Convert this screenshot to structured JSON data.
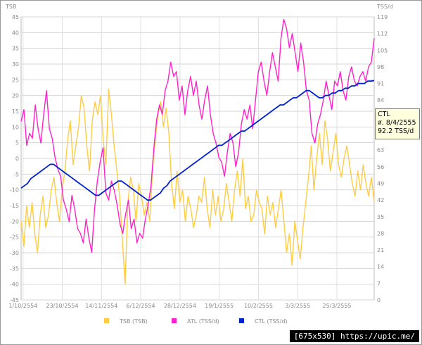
{
  "chart_data": {
    "type": "line",
    "ylabel_left": "TSB",
    "ylabel_right": "TSS/d",
    "ylim_left": [
      -45,
      45
    ],
    "ylim_right": [
      0,
      119
    ],
    "y_ticks_left": [
      "45",
      "40",
      "35",
      "30",
      "25",
      "20",
      "15",
      "10",
      "5",
      "0",
      "-5",
      "-10",
      "-15",
      "-20",
      "-25",
      "-30",
      "-35",
      "-40",
      "-45"
    ],
    "y_ticks_right": [
      "119",
      "112",
      "105",
      "98",
      "91",
      "84",
      "77",
      "70",
      "63",
      "56",
      "49",
      "42",
      "35",
      "28",
      "21",
      "14",
      "7",
      "0"
    ],
    "x_ticks": [
      "1/10/2554",
      "23/10/2554",
      "14/11/2554",
      "6/12/2554",
      "28/12/2554",
      "19/1/2555",
      "10/2/2555",
      "3/3/2555",
      "25/3/2555"
    ],
    "x_range": [
      "1/10/2554",
      "8/4/2555"
    ],
    "grid": true,
    "legend_position": "bottom",
    "series": [
      {
        "name": "TSB (TSB)",
        "color": "#ffcc44",
        "axis": "left",
        "values": [
          -20,
          -28,
          -15,
          -22,
          -14,
          -24,
          -30,
          -18,
          -12,
          -22,
          -18,
          -10,
          -6,
          -14,
          -20,
          -10,
          -4,
          6,
          12,
          -2,
          4,
          10,
          20,
          16,
          4,
          -4,
          12,
          18,
          14,
          20,
          6,
          -2,
          22,
          14,
          4,
          -4,
          -12,
          -26,
          -40,
          -14,
          -6,
          -10,
          -20,
          -8,
          -12,
          -18,
          -14,
          -20,
          -4,
          6,
          14,
          18,
          10,
          16,
          8,
          -8,
          -16,
          -4,
          -14,
          -10,
          -20,
          -12,
          -16,
          -22,
          -18,
          -12,
          -14,
          -6,
          -16,
          -22,
          -10,
          -18,
          -12,
          -20,
          -16,
          -8,
          -14,
          -20,
          -10,
          -4,
          -12,
          0,
          -16,
          -12,
          -20,
          -18,
          -10,
          -14,
          -16,
          -24,
          -12,
          -18,
          -14,
          -22,
          -16,
          -10,
          -20,
          -30,
          -24,
          -34,
          -20,
          -26,
          -32,
          -22,
          -14,
          -6,
          4,
          -10,
          0,
          8,
          -2,
          12,
          6,
          -4,
          2,
          8,
          -2,
          -6,
          0,
          4,
          -2,
          -8,
          -12,
          -4,
          -10,
          -2,
          -8,
          -12,
          -6,
          -14
        ]
      },
      {
        "name": "ATL (TSS/d)",
        "color": "#ff22cc",
        "axis": "right",
        "values": [
          75,
          80,
          65,
          70,
          68,
          82,
          72,
          66,
          78,
          88,
          72,
          68,
          60,
          55,
          52,
          42,
          38,
          33,
          44,
          38,
          30,
          28,
          24,
          34,
          26,
          20,
          38,
          50,
          58,
          64,
          45,
          42,
          50,
          46,
          40,
          32,
          28,
          36,
          42,
          30,
          34,
          24,
          28,
          26,
          34,
          40,
          48,
          64,
          76,
          82,
          78,
          88,
          92,
          100,
          94,
          96,
          84,
          90,
          78,
          88,
          94,
          86,
          92,
          82,
          76,
          84,
          90,
          78,
          70,
          66,
          60,
          58,
          52,
          62,
          70,
          66,
          56,
          62,
          74,
          80,
          76,
          82,
          72,
          84,
          96,
          100,
          92,
          86,
          96,
          104,
          98,
          92,
          110,
          118,
          114,
          106,
          112,
          104,
          96,
          108,
          100,
          88,
          84,
          70,
          66,
          74,
          78,
          84,
          92,
          86,
          80,
          92,
          90,
          96,
          88,
          84,
          94,
          98,
          92,
          90,
          94,
          96,
          92,
          98,
          100,
          110
        ]
      },
      {
        "name": "CTL (TSS/d)",
        "color": "#0022cc",
        "axis": "right",
        "values": [
          47,
          48,
          49,
          51,
          52,
          53,
          54,
          55,
          56,
          57,
          57,
          56,
          55,
          54,
          53,
          52,
          51,
          50,
          49,
          48,
          47,
          46,
          45,
          44,
          44,
          45,
          46,
          47,
          48,
          49,
          50,
          50,
          49,
          48,
          47,
          46,
          45,
          44,
          43,
          42,
          42,
          43,
          44,
          45,
          47,
          48,
          50,
          51,
          52,
          53,
          54,
          55,
          56,
          57,
          58,
          59,
          60,
          61,
          62,
          63,
          64,
          65,
          65,
          66,
          67,
          68,
          69,
          70,
          71,
          71,
          72,
          73,
          74,
          75,
          76,
          77,
          78,
          79,
          80,
          81,
          82,
          82,
          83,
          84,
          85,
          85,
          86,
          87,
          88,
          88,
          87,
          86,
          85,
          85,
          86,
          86,
          87,
          87,
          88,
          88,
          89,
          89,
          90,
          90,
          91,
          91,
          91,
          92,
          92,
          92.2
        ]
      }
    ]
  },
  "tooltip": {
    "series": "CTL",
    "date": "ส. 8/4/2555",
    "value": "92.2 TSS/d"
  },
  "watermark": "[675x530] https://upic.me/"
}
